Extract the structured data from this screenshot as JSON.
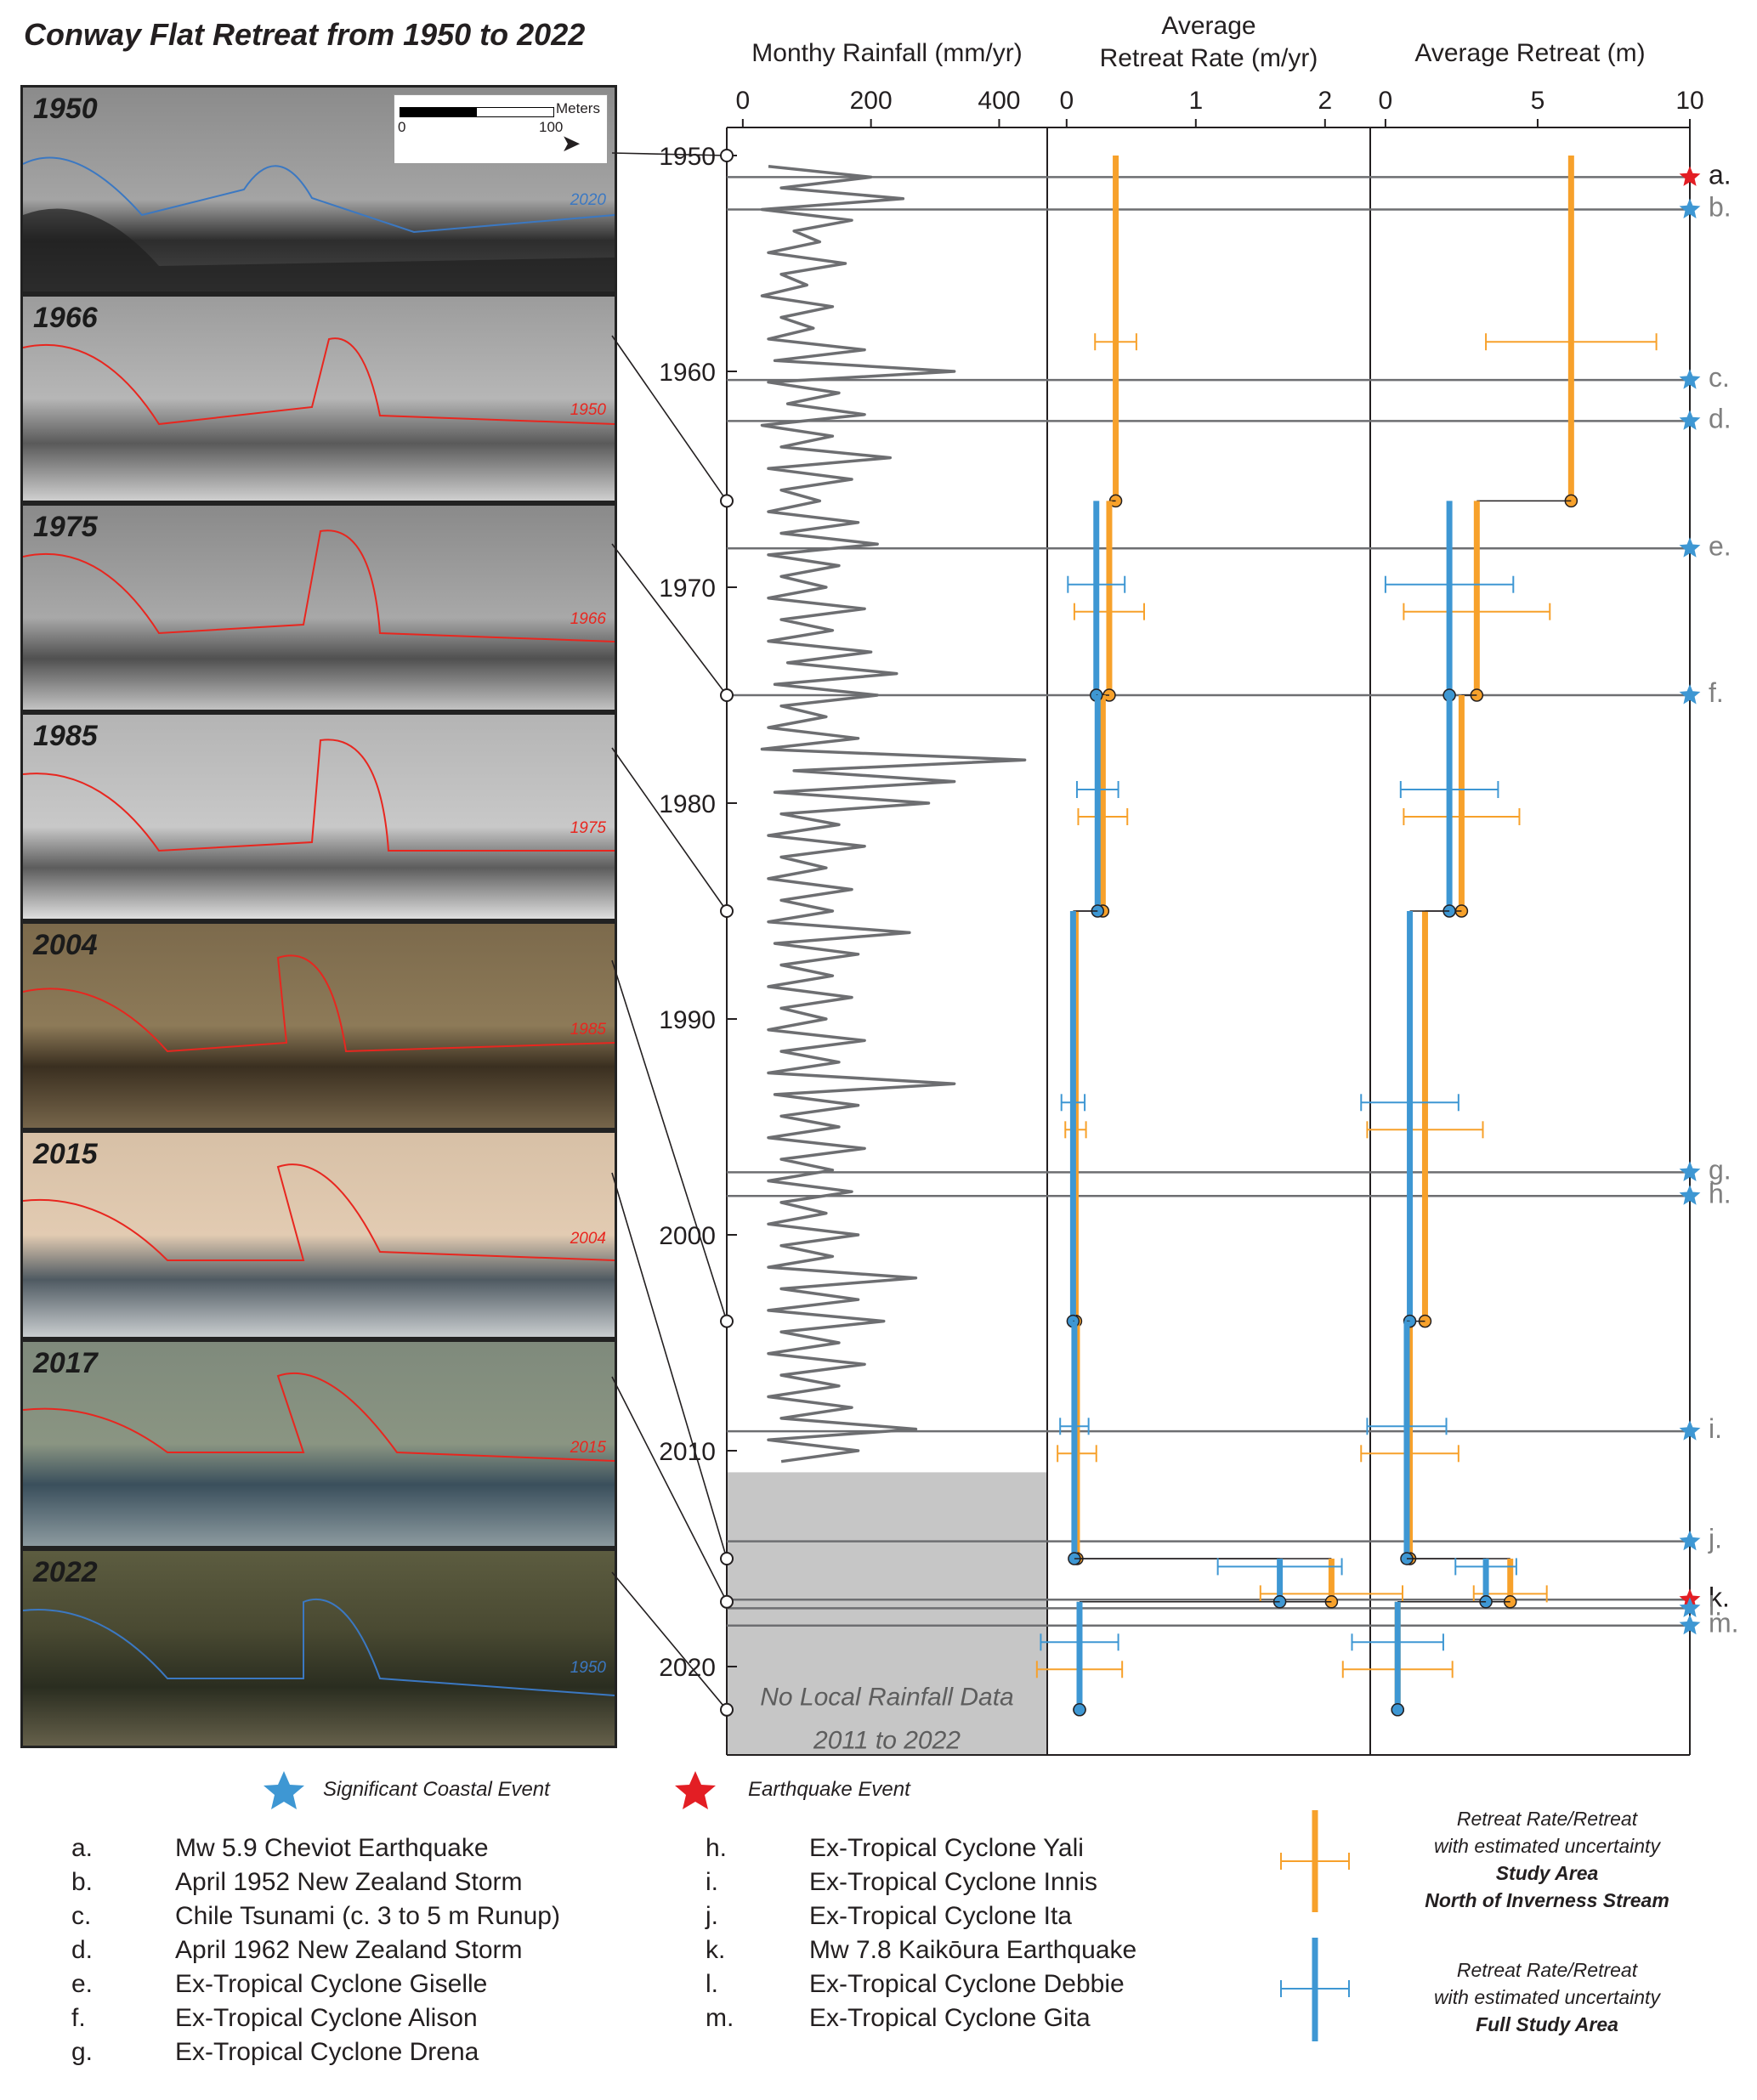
{
  "title": "Conway Flat Retreat from 1950 to 2022",
  "photos": [
    {
      "year": "1950",
      "tag": "2020",
      "tag_color": "#3b78c2"
    },
    {
      "year": "1966",
      "tag": "1950",
      "tag_color": "#e8261f"
    },
    {
      "year": "1975",
      "tag": "1966",
      "tag_color": "#e8261f"
    },
    {
      "year": "1985",
      "tag": "1975",
      "tag_color": "#e8261f"
    },
    {
      "year": "2004",
      "tag": "1985",
      "tag_color": "#e8261f"
    },
    {
      "year": "2015",
      "tag": "2004",
      "tag_color": "#e8261f"
    },
    {
      "year": "2017",
      "tag": "2015",
      "tag_color": "#e8261f"
    },
    {
      "year": "2022",
      "tag": "1950",
      "tag_color": "#3b78c2"
    }
  ],
  "scale_bar": {
    "unit": "Meters",
    "start": "0",
    "end": "100"
  },
  "no_data_note": [
    "No Local Rainfall Data",
    "2011 to 2022"
  ],
  "colors": {
    "orange": "#f7a12b",
    "blue": "#3e97d3",
    "red": "#e31e24",
    "grey": "#6d6e71",
    "nodata": "#c6c6c6"
  },
  "chart_data": {
    "type": "line",
    "year_axis": {
      "ticks": [
        1950,
        1960,
        1970,
        1980,
        1990,
        2000,
        2010,
        2020
      ],
      "range": [
        1950,
        2022
      ]
    },
    "photo_years": [
      1950,
      1966,
      1975,
      1985,
      2004,
      2015,
      2017,
      2022
    ],
    "panels": [
      {
        "title_lines": [
          "Monthy Rainfall (mm/yr)"
        ],
        "xlim": [
          -25,
          475
        ],
        "ticks": [
          0,
          200,
          400
        ]
      },
      {
        "title_lines": [
          "Average",
          "Retreat Rate (m/yr)"
        ],
        "xlim": [
          -0.15,
          2.35
        ],
        "ticks": [
          0,
          1,
          2
        ]
      },
      {
        "title_lines": [
          "Average Retreat (m)"
        ],
        "xlim": [
          -0.5,
          10
        ],
        "ticks": [
          0,
          5,
          10
        ]
      }
    ],
    "rainfall": {
      "years": [
        1950.5,
        1951.0,
        1951.5,
        1952.0,
        1952.5,
        1953.0,
        1953.5,
        1954.0,
        1954.5,
        1955.0,
        1955.5,
        1956.0,
        1956.5,
        1957.0,
        1957.5,
        1958.0,
        1958.5,
        1959.0,
        1959.5,
        1960.0,
        1960.5,
        1961.0,
        1961.5,
        1962.0,
        1962.5,
        1963.0,
        1963.5,
        1964.0,
        1964.5,
        1965.0,
        1965.5,
        1966.0,
        1966.5,
        1967.0,
        1967.5,
        1968.0,
        1968.5,
        1969.0,
        1969.5,
        1970.0,
        1970.5,
        1971.0,
        1971.5,
        1972.0,
        1972.5,
        1973.0,
        1973.5,
        1974.0,
        1974.5,
        1975.0,
        1975.5,
        1976.0,
        1976.5,
        1977.0,
        1977.5,
        1978.0,
        1978.5,
        1979.0,
        1979.5,
        1980.0,
        1980.5,
        1981.0,
        1981.5,
        1982.0,
        1982.5,
        1983.0,
        1983.5,
        1984.0,
        1984.5,
        1985.0,
        1985.5,
        1986.0,
        1986.5,
        1987.0,
        1987.5,
        1988.0,
        1988.5,
        1989.0,
        1989.5,
        1990.0,
        1990.5,
        1991.0,
        1991.5,
        1992.0,
        1992.5,
        1993.0,
        1993.5,
        1994.0,
        1994.5,
        1995.0,
        1995.5,
        1996.0,
        1996.5,
        1997.0,
        1997.5,
        1998.0,
        1998.5,
        1999.0,
        1999.5,
        2000.0,
        2000.5,
        2001.0,
        2001.5,
        2002.0,
        2002.5,
        2003.0,
        2003.5,
        2004.0,
        2004.5,
        2005.0,
        2005.5,
        2006.0,
        2006.5,
        2007.0,
        2007.5,
        2008.0,
        2008.5,
        2009.0,
        2009.5,
        2010.0,
        2010.5
      ],
      "values": [
        40,
        200,
        60,
        250,
        30,
        170,
        80,
        120,
        40,
        160,
        60,
        100,
        30,
        140,
        60,
        110,
        40,
        190,
        50,
        330,
        40,
        150,
        70,
        190,
        30,
        140,
        60,
        230,
        40,
        170,
        60,
        120,
        40,
        180,
        60,
        210,
        40,
        150,
        60,
        130,
        40,
        190,
        60,
        140,
        40,
        200,
        70,
        240,
        50,
        210,
        60,
        130,
        40,
        180,
        30,
        440,
        80,
        330,
        50,
        290,
        60,
        150,
        40,
        190,
        60,
        130,
        40,
        170,
        60,
        140,
        40,
        260,
        50,
        180,
        60,
        140,
        40,
        170,
        60,
        130,
        40,
        190,
        60,
        150,
        40,
        330,
        50,
        180,
        60,
        150,
        40,
        190,
        60,
        140,
        40,
        170,
        60,
        130,
        40,
        180,
        60,
        140,
        40,
        270,
        60,
        180,
        40,
        220,
        60,
        150,
        40,
        190,
        60,
        150,
        40,
        170,
        60,
        270,
        40,
        180,
        60
      ]
    },
    "events": [
      {
        "label": "a.",
        "year": 1951.0,
        "type": "earthquake",
        "name": "Mw 5.9 Cheviot Earthquake"
      },
      {
        "label": "b.",
        "year": 1952.5,
        "type": "coastal",
        "name": "April 1952 New Zealand Storm"
      },
      {
        "label": "c.",
        "year": 1960.4,
        "type": "coastal",
        "name": "Chile Tsunami (c. 3 to 5 m Runup)"
      },
      {
        "label": "d.",
        "year": 1962.3,
        "type": "coastal",
        "name": "April 1962 New Zealand Storm"
      },
      {
        "label": "e.",
        "year": 1968.2,
        "type": "coastal",
        "name": "Ex-Tropical Cyclone Giselle"
      },
      {
        "label": "f.",
        "year": 1975.0,
        "type": "coastal",
        "name": "Ex-Tropical Cyclone Alison"
      },
      {
        "label": "g.",
        "year": 1997.1,
        "type": "coastal",
        "name": "Ex-Tropical Cyclone Drena"
      },
      {
        "label": "h.",
        "year": 1998.2,
        "type": "coastal",
        "name": "Ex-Tropical Cyclone Yali"
      },
      {
        "label": "i.",
        "year": 2009.1,
        "type": "coastal",
        "name": "Ex-Tropical Cyclone Innis"
      },
      {
        "label": "j.",
        "year": 2014.2,
        "type": "coastal",
        "name": "Ex-Tropical Cyclone Ita"
      },
      {
        "label": "k.",
        "year": 2016.9,
        "type": "earthquake",
        "name": "Mw 7.8 Kaikōura Earthquake"
      },
      {
        "label": "l.",
        "year": 2017.3,
        "type": "coastal",
        "name": "Ex-Tropical Cyclone Debbie"
      },
      {
        "label": "m.",
        "year": 2018.1,
        "type": "coastal",
        "name": "Ex-Tropical Cyclone Gita"
      }
    ],
    "rate_series": [
      {
        "key": "orange",
        "intervals": [
          {
            "y0": 1950,
            "y1": 1966,
            "v": 0.38,
            "err": 0.16
          },
          {
            "y0": 1966,
            "y1": 1975,
            "v": 0.33,
            "err": 0.27
          },
          {
            "y0": 1975,
            "y1": 1985,
            "v": 0.28,
            "err": 0.19
          },
          {
            "y0": 1985,
            "y1": 2004,
            "v": 0.07,
            "err": 0.08
          },
          {
            "y0": 2004,
            "y1": 2015,
            "v": 0.08,
            "err": 0.15
          },
          {
            "y0": 2015,
            "y1": 2017,
            "v": 2.05,
            "err": 0.55
          },
          {
            "y0": 2017,
            "y1": 2022,
            "v": 0.1,
            "err": 0.33
          }
        ]
      },
      {
        "key": "blue",
        "intervals": [
          {
            "y0": 1966,
            "y1": 1975,
            "v": 0.23,
            "err": 0.22
          },
          {
            "y0": 1975,
            "y1": 1985,
            "v": 0.24,
            "err": 0.16
          },
          {
            "y0": 1985,
            "y1": 2004,
            "v": 0.05,
            "err": 0.09
          },
          {
            "y0": 2004,
            "y1": 2015,
            "v": 0.06,
            "err": 0.11
          },
          {
            "y0": 2015,
            "y1": 2017,
            "v": 1.65,
            "err": 0.48
          },
          {
            "y0": 2017,
            "y1": 2022,
            "v": 0.1,
            "err": 0.3
          }
        ]
      }
    ],
    "retreat_series": [
      {
        "key": "orange",
        "intervals": [
          {
            "y0": 1950,
            "y1": 1966,
            "v": 6.1,
            "err": 2.8
          },
          {
            "y0": 1966,
            "y1": 1975,
            "v": 3.0,
            "err": 2.4
          },
          {
            "y0": 1975,
            "y1": 1985,
            "v": 2.5,
            "err": 1.9
          },
          {
            "y0": 1985,
            "y1": 2004,
            "v": 1.3,
            "err": 1.9
          },
          {
            "y0": 2004,
            "y1": 2015,
            "v": 0.8,
            "err": 1.6
          },
          {
            "y0": 2015,
            "y1": 2017,
            "v": 4.1,
            "err": 1.2
          },
          {
            "y0": 2017,
            "y1": 2022,
            "v": 0.4,
            "err": 1.8
          }
        ]
      },
      {
        "key": "blue",
        "intervals": [
          {
            "y0": 1966,
            "y1": 1975,
            "v": 2.1,
            "err": 2.1
          },
          {
            "y0": 1975,
            "y1": 1985,
            "v": 2.1,
            "err": 1.6
          },
          {
            "y0": 1985,
            "y1": 2004,
            "v": 0.8,
            "err": 1.6
          },
          {
            "y0": 2004,
            "y1": 2015,
            "v": 0.7,
            "err": 1.3
          },
          {
            "y0": 2015,
            "y1": 2017,
            "v": 3.3,
            "err": 1.0
          },
          {
            "y0": 2017,
            "y1": 2022,
            "v": 0.4,
            "err": 1.5
          }
        ]
      }
    ]
  },
  "legend": {
    "coastal_label": "Significant Coastal Event",
    "earthquake_label": "Earthquake Event",
    "items_left": [
      {
        "letter": "a.",
        "text": "Mw 5.9 Cheviot Earthquake"
      },
      {
        "letter": "b.",
        "text": "April 1952 New Zealand Storm"
      },
      {
        "letter": "c.",
        "text": "Chile Tsunami (c. 3 to 5 m Runup)"
      },
      {
        "letter": "d.",
        "text": "April 1962 New Zealand Storm"
      },
      {
        "letter": "e.",
        "text": "Ex-Tropical Cyclone Giselle"
      },
      {
        "letter": "f.",
        "text": "Ex-Tropical Cyclone Alison"
      },
      {
        "letter": "g.",
        "text": "Ex-Tropical Cyclone Drena"
      }
    ],
    "items_right": [
      {
        "letter": "h.",
        "text": "Ex-Tropical Cyclone Yali"
      },
      {
        "letter": "i.",
        "text": "Ex-Tropical Cyclone Innis"
      },
      {
        "letter": "j.",
        "text": "Ex-Tropical Cyclone Ita"
      },
      {
        "letter": "k.",
        "text": "Mw 7.8 Kaikōura Earthquake"
      },
      {
        "letter": "l.",
        "text": "Ex-Tropical Cyclone Debbie"
      },
      {
        "letter": "m.",
        "text": "Ex-Tropical Cyclone Gita"
      }
    ],
    "key_orange": {
      "line1": "Retreat Rate/Retreat",
      "line2": "with estimated uncertainty",
      "line3": "Study Area",
      "line4": "North of Inverness Stream"
    },
    "key_blue": {
      "line1": "Retreat Rate/Retreat",
      "line2": "with estimated uncertainty",
      "line3": "Full Study Area"
    }
  }
}
